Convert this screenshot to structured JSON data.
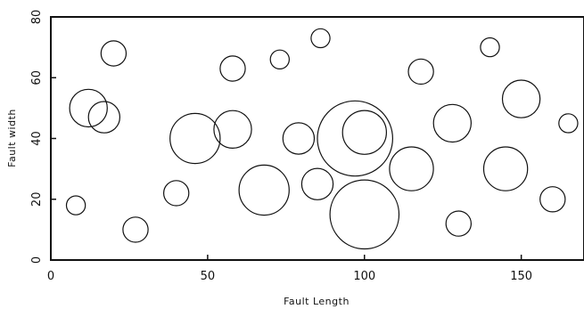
{
  "chart_data": {
    "type": "scatter",
    "title": "",
    "xlabel": "Fault Length",
    "ylabel": "Fault width",
    "xlim": [
      0,
      170
    ],
    "ylim": [
      0,
      80
    ],
    "x_ticks": [
      0,
      50,
      100,
      150
    ],
    "y_ticks": [
      0,
      20,
      40,
      60,
      80
    ],
    "x_tick_labels": [
      "0",
      "50",
      "100",
      "150"
    ],
    "y_tick_labels": [
      "0",
      "20",
      "40",
      "60",
      "80"
    ],
    "grid": false,
    "legend": "none",
    "series": [
      {
        "marker": "open-circle",
        "color": "#111111",
        "points": [
          {
            "x": 12,
            "y": 50,
            "r": 6
          },
          {
            "x": 17,
            "y": 47,
            "r": 5
          },
          {
            "x": 46,
            "y": 40,
            "r": 8
          },
          {
            "x": 58,
            "y": 43,
            "r": 6
          },
          {
            "x": 68,
            "y": 23,
            "r": 8
          },
          {
            "x": 79,
            "y": 40,
            "r": 5
          },
          {
            "x": 85,
            "y": 25,
            "r": 5
          },
          {
            "x": 97,
            "y": 40,
            "r": 12
          },
          {
            "x": 100,
            "y": 42,
            "r": 7
          },
          {
            "x": 100,
            "y": 15,
            "r": 11
          },
          {
            "x": 115,
            "y": 30,
            "r": 7
          },
          {
            "x": 128,
            "y": 45,
            "r": 6
          },
          {
            "x": 145,
            "y": 30,
            "r": 7
          },
          {
            "x": 150,
            "y": 53,
            "r": 6
          },
          {
            "x": 20,
            "y": 68,
            "r": 4
          },
          {
            "x": 58,
            "y": 63,
            "r": 4
          },
          {
            "x": 73,
            "y": 66,
            "r": 3
          },
          {
            "x": 86,
            "y": 73,
            "r": 3
          },
          {
            "x": 118,
            "y": 62,
            "r": 4
          },
          {
            "x": 140,
            "y": 70,
            "r": 3
          },
          {
            "x": 8,
            "y": 18,
            "r": 3
          },
          {
            "x": 27,
            "y": 10,
            "r": 4
          },
          {
            "x": 40,
            "y": 22,
            "r": 4
          },
          {
            "x": 130,
            "y": 12,
            "r": 4
          },
          {
            "x": 160,
            "y": 20,
            "r": 4
          },
          {
            "x": 165,
            "y": 45,
            "r": 3
          }
        ]
      }
    ]
  }
}
